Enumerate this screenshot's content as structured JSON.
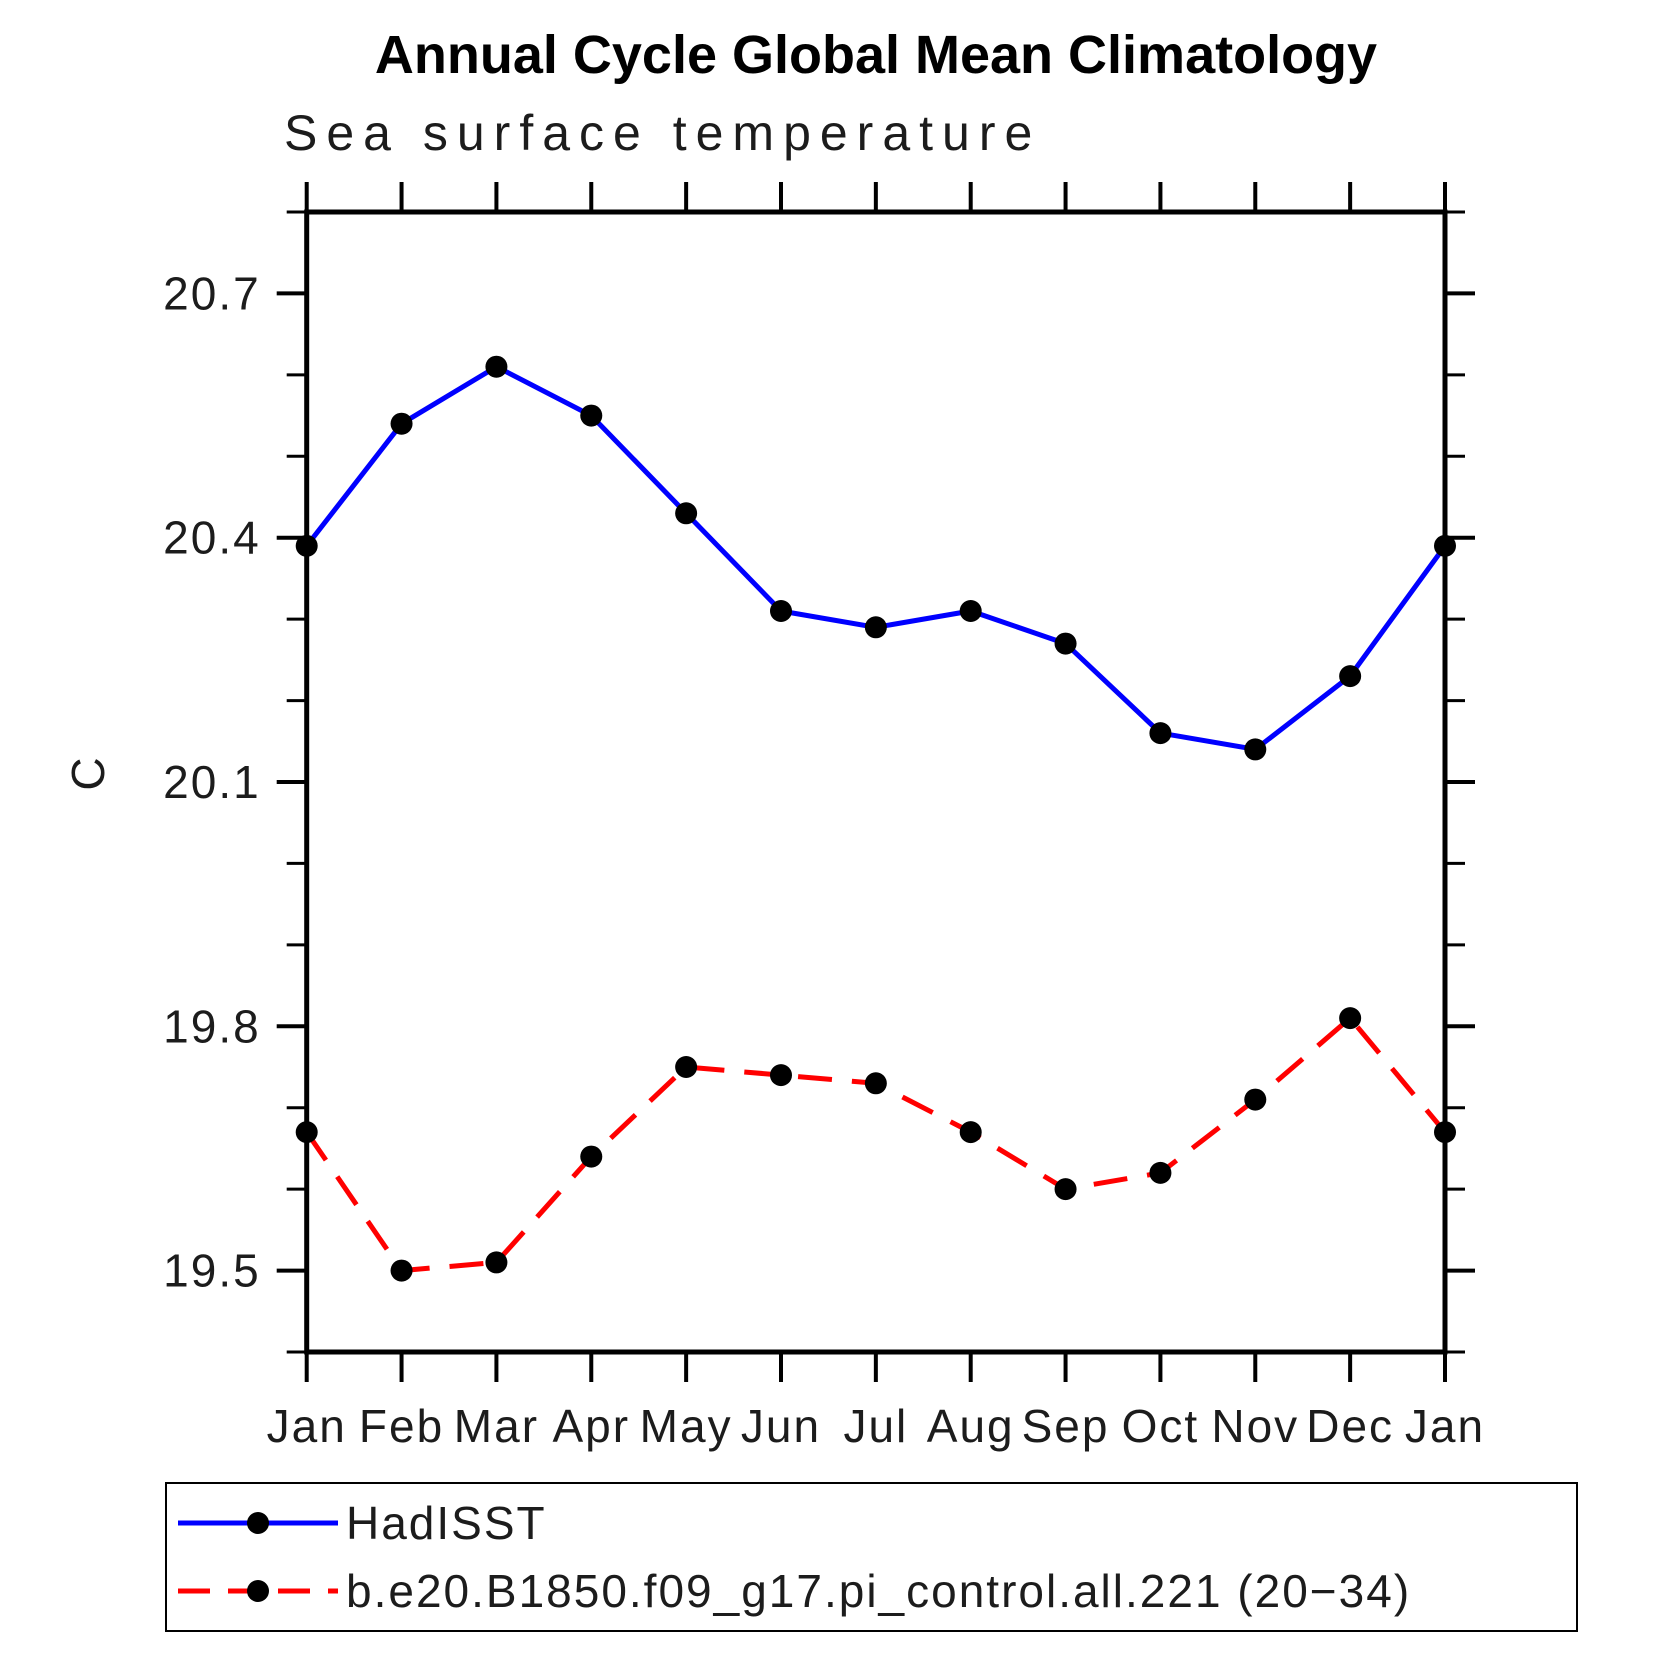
{
  "header": {
    "title": "Annual Cycle Global Mean Climatology",
    "subtitle": "Sea surface temperature"
  },
  "chart_data": {
    "type": "line",
    "title": "Annual Cycle Global Mean Climatology",
    "subtitle": "Sea surface temperature",
    "ylabel": "C",
    "xlabel": "",
    "x_tick_labels": [
      "Jan",
      "Feb",
      "Mar",
      "Apr",
      "May",
      "Jun",
      "Jul",
      "Aug",
      "Sep",
      "Oct",
      "Nov",
      "Dec",
      "Jan"
    ],
    "ylim": [
      19.4,
      20.8
    ],
    "y_major_ticks": [
      19.5,
      19.8,
      20.1,
      20.4,
      20.7
    ],
    "y_minor_step": 0.1,
    "grid": false,
    "legend_position": "bottom",
    "series": [
      {
        "name": "HadISST",
        "color": "#0000ff",
        "line_style": "solid",
        "marker": "circle",
        "marker_color": "#000000",
        "values": [
          20.39,
          20.54,
          20.61,
          20.55,
          20.43,
          20.31,
          20.29,
          20.31,
          20.27,
          20.16,
          20.14,
          20.23,
          20.39
        ]
      },
      {
        "name": "b.e20.B1850.f09_g17.pi_control.all.221 (20−34)",
        "color": "#ff0000",
        "line_style": "dashed",
        "marker": "circle",
        "marker_color": "#000000",
        "values": [
          19.67,
          19.5,
          19.51,
          19.64,
          19.75,
          19.74,
          19.73,
          19.67,
          19.6,
          19.62,
          19.71,
          19.81,
          19.67
        ]
      }
    ]
  }
}
